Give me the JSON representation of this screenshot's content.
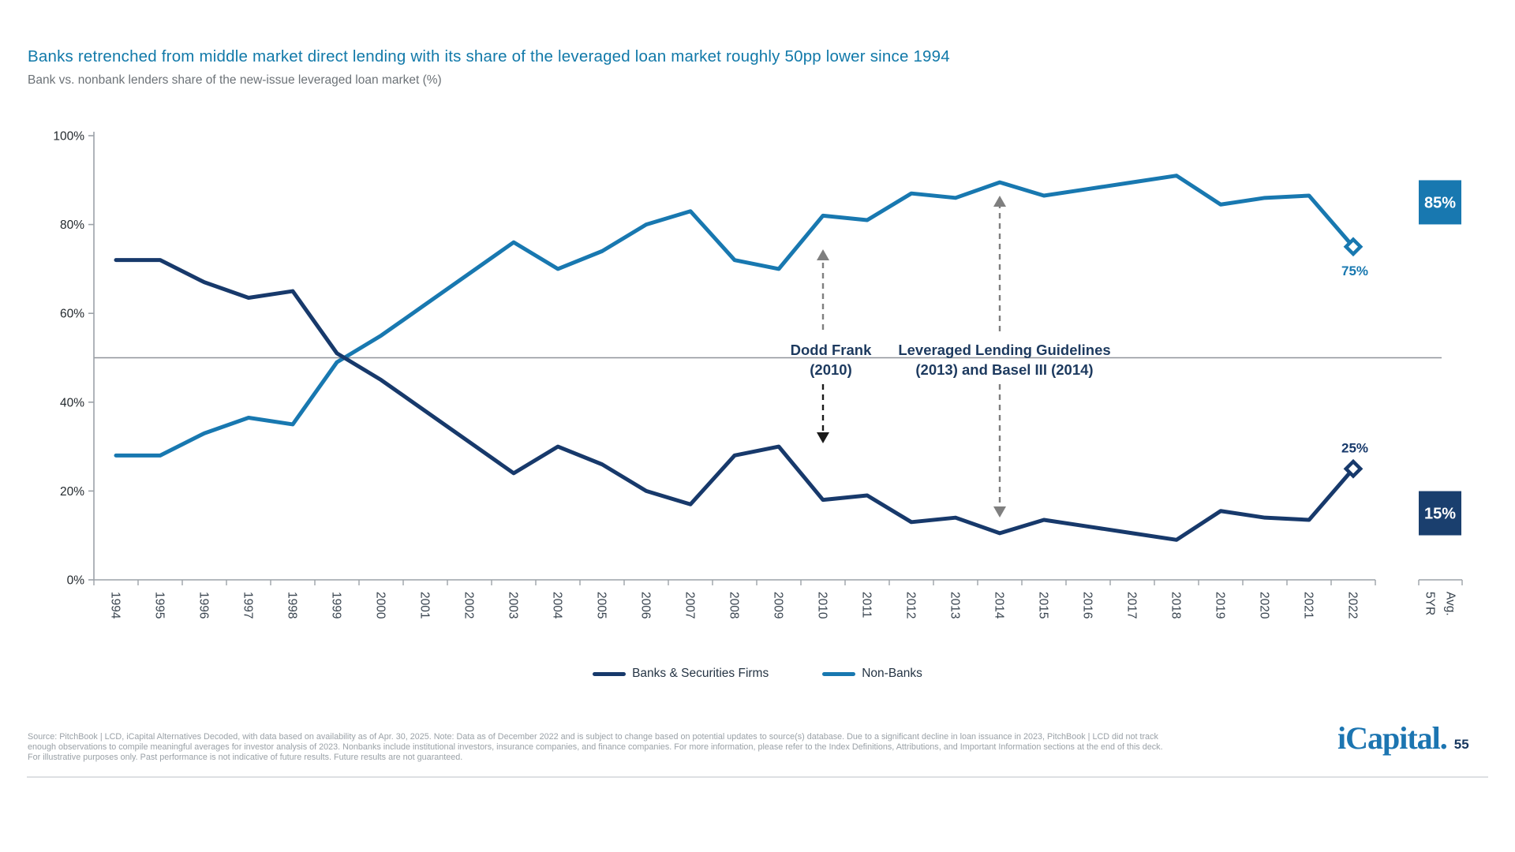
{
  "page": {
    "title": "Banks retrenched from middle market direct lending with its share of the leveraged loan market roughly 50pp lower since 1994",
    "subtitle": "Bank vs. nonbank lenders share of the new-issue leveraged loan market (%)",
    "source_lines": [
      "Source: PitchBook | LCD, iCapital Alternatives Decoded, with data based on availability as of Apr. 30, 2025. Note: Data as of December 2022 and is subject to change based on potential updates to source(s) database. Due to a significant decline in loan issuance in 2023, PitchBook | LCD did not track",
      "enough observations to compile meaningful averages for investor analysis of 2023. Nonbanks include institutional investors, insurance companies, and finance companies. For more information, please refer to the Index Definitions, Attributions, and Important Information sections at the end of this deck.",
      "For illustrative purposes only. Past performance is not indicative of future results. Future results are not guaranteed."
    ],
    "logo_text": "iCapital.",
    "page_number": "55",
    "accent_colors": {
      "title_blue": "#1179A9",
      "logo_blue": "#1C75B1",
      "page_number_navy": "#16365E"
    }
  },
  "chart_data": {
    "type": "line",
    "title": "Bank vs. nonbank lenders share of the new-issue leveraged loan market (%)",
    "x": [
      1994,
      1995,
      1996,
      1997,
      1998,
      1999,
      2000,
      2001,
      2002,
      2003,
      2004,
      2005,
      2006,
      2007,
      2008,
      2009,
      2010,
      2011,
      2012,
      2013,
      2014,
      2015,
      2016,
      2017,
      2018,
      2019,
      2020,
      2021,
      2022
    ],
    "series": [
      {
        "name": "Banks & Securities Firms",
        "color": "#17396B",
        "values": [
          72,
          72,
          67,
          63.5,
          65,
          51,
          45,
          38,
          31,
          24,
          30,
          26,
          20,
          17,
          28,
          30,
          18,
          19,
          13,
          14,
          10.5,
          13.5,
          12,
          10.5,
          9,
          15.5,
          14,
          13.5,
          25
        ],
        "end_marker": "diamond",
        "end_label": "25%"
      },
      {
        "name": "Non-Banks",
        "color": "#1878B0",
        "values": [
          28,
          28,
          33,
          36.5,
          35,
          49,
          55,
          62,
          69,
          76,
          70,
          74,
          80,
          83,
          72,
          70,
          82,
          81,
          87,
          86,
          89.5,
          86.5,
          88,
          89.5,
          91,
          84.5,
          86,
          86.5,
          75
        ],
        "end_marker": "diamond",
        "end_label": "75%"
      }
    ],
    "ylim": [
      0,
      100
    ],
    "yticks": [
      0,
      20,
      40,
      60,
      80,
      100
    ],
    "ytick_suffix": "%",
    "grid": false,
    "legend_position": "bottom",
    "reference_line": {
      "value": 50,
      "color": "#8F9499"
    },
    "avg_column": {
      "label_lines": [
        "5YR",
        "Avg."
      ],
      "boxes": [
        {
          "text": "85%",
          "value": 85,
          "color": "#1878B0",
          "series": "Non-Banks"
        },
        {
          "text": "15%",
          "value": 15,
          "color": "#1A3F6E",
          "series": "Banks & Securities Firms"
        }
      ]
    },
    "annotations": [
      {
        "lines": [
          "Dodd Frank",
          "(2010)"
        ],
        "year": 2010,
        "arrow_up_color": "#7F7F7F",
        "arrow_down_color": "#1A1A1A"
      },
      {
        "lines": [
          "Leveraged Lending Guidelines",
          "(2013) and Basel III (2014)"
        ],
        "year": 2014,
        "arrow_up_color": "#7F7F7F",
        "arrow_down_color": "#7F7F7F"
      }
    ],
    "text_color": "#1D3A5F",
    "axis_color": "#9CA2A8",
    "year_label_color": "#39444F",
    "ytick_label_color": "#23292E"
  }
}
